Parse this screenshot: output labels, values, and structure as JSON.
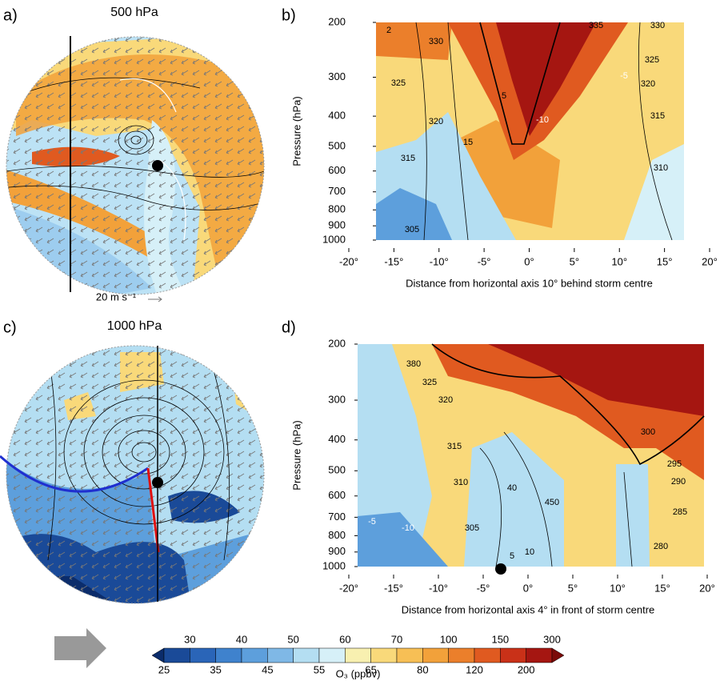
{
  "chart_data": [
    {
      "type": "map",
      "label": "a)",
      "title": "500 hPa",
      "wind_key": "20 m s⁻¹"
    },
    {
      "type": "section",
      "label": "b)",
      "xlabel": "Distance from horizontal axis 10° behind storm centre",
      "ylabel": "Pressure (hPa)",
      "xlim": [
        -20,
        20
      ],
      "xticks": [
        {
          "value": -20,
          "label": "-20°"
        },
        {
          "value": -15,
          "label": "-15°"
        },
        {
          "value": -10,
          "label": "-10°"
        },
        {
          "value": -5,
          "label": "-5°"
        },
        {
          "value": 0,
          "label": "0°"
        },
        {
          "value": 5,
          "label": "5°"
        },
        {
          "value": 10,
          "label": "10°"
        },
        {
          "value": 15,
          "label": "15°"
        },
        {
          "value": 20,
          "label": "20°"
        }
      ],
      "ylim": [
        1000,
        200
      ],
      "ylog": true,
      "yticks": [
        200,
        300,
        400,
        500,
        600,
        700,
        800,
        900,
        1000
      ],
      "contour_labels": [
        "330",
        "335",
        "330",
        "325",
        "325",
        "320",
        "320",
        "315",
        "315",
        "310",
        "305",
        "2",
        "-5",
        "-10",
        "5",
        "15"
      ]
    },
    {
      "type": "map",
      "label": "c)",
      "title": "1000 hPa"
    },
    {
      "type": "section",
      "label": "d)",
      "xlabel": "Distance from horizontal axis 4° in front of storm centre",
      "ylabel": "Pressure (hPa)",
      "xlim": [
        -20,
        20
      ],
      "xticks": [
        {
          "value": -20,
          "label": "-20°"
        },
        {
          "value": -15,
          "label": "-15°"
        },
        {
          "value": -10,
          "label": "-10°"
        },
        {
          "value": -5,
          "label": "-5°"
        },
        {
          "value": 0,
          "label": "0°"
        },
        {
          "value": 5,
          "label": "5°"
        },
        {
          "value": 10,
          "label": "10°"
        },
        {
          "value": 15,
          "label": "15°"
        },
        {
          "value": 20,
          "label": "20°"
        }
      ],
      "ylim": [
        1000,
        200
      ],
      "ylog": true,
      "yticks": [
        200,
        300,
        400,
        500,
        600,
        700,
        800,
        900,
        1000
      ],
      "contour_labels": [
        "380",
        "325",
        "320",
        "315",
        "310",
        "305",
        "300",
        "295",
        "290",
        "285",
        "280",
        "450",
        "40",
        "10",
        "-10",
        "-5",
        "5"
      ]
    },
    {
      "type": "colorbar",
      "label": "O₃ (ppbv)",
      "levels": [
        25,
        30,
        35,
        40,
        45,
        50,
        55,
        60,
        65,
        70,
        80,
        100,
        120,
        150,
        200,
        300
      ],
      "colors": [
        "#0b2c6b",
        "#1a4a98",
        "#2a65b8",
        "#3f82cd",
        "#5d9fdc",
        "#7fb8e6",
        "#b4def2",
        "#d6f0f8",
        "#f8f0b0",
        "#f9d97a",
        "#f7bf55",
        "#f2a13a",
        "#eb7f2b",
        "#e05a20",
        "#c93118",
        "#a51611",
        "#7b0b09"
      ]
    }
  ]
}
